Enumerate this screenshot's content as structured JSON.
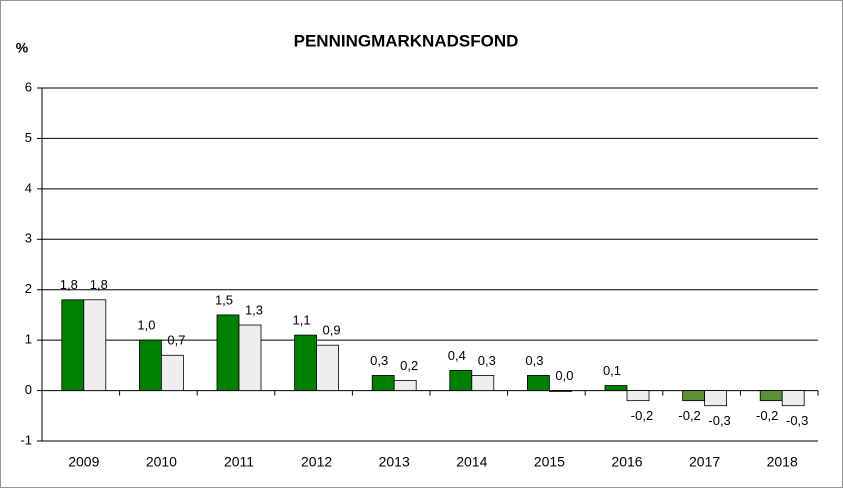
{
  "chart_data": {
    "type": "bar",
    "title": "PENNINGMARKNADSFOND",
    "ylabel": "%",
    "categories": [
      "2009",
      "2010",
      "2011",
      "2012",
      "2013",
      "2014",
      "2015",
      "2016",
      "2017",
      "2018"
    ],
    "series": [
      {
        "color": "#008000",
        "colors": [
          "#008000",
          "#008000",
          "#008000",
          "#008000",
          "#008000",
          "#008000",
          "#008000",
          "#008000",
          "#5b8f3a",
          "#5b8f3a"
        ],
        "values": [
          1.8,
          1.0,
          1.5,
          1.1,
          0.3,
          0.4,
          0.3,
          0.1,
          -0.2,
          -0.2
        ],
        "value_labels": [
          "1,8",
          "1,0",
          "1,5",
          "1,1",
          "0,3",
          "0,4",
          "0,3",
          "0,1",
          "-0,2",
          "-0,2"
        ]
      },
      {
        "color": "#eeeeee",
        "values": [
          1.8,
          0.7,
          1.3,
          0.9,
          0.2,
          0.3,
          0.0,
          -0.2,
          -0.3,
          -0.3
        ],
        "value_labels": [
          "1,8",
          "0,7",
          "1,3",
          "0,9",
          "0,2",
          "0,3",
          "0,0",
          "-0,2",
          "-0,3",
          "-0,3"
        ]
      }
    ],
    "ylim": [
      -1,
      6
    ],
    "yticks": [
      -1,
      0,
      1,
      2,
      3,
      4,
      5,
      6
    ],
    "grid": true
  }
}
